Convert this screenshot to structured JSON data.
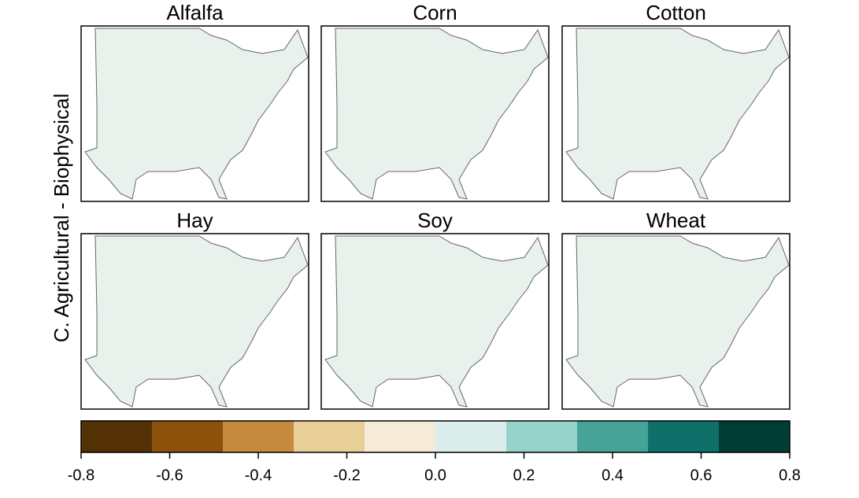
{
  "ylabel": "C. Agricultural - Biophysical",
  "panels": [
    {
      "title": "Alfalfa"
    },
    {
      "title": "Corn"
    },
    {
      "title": "Cotton"
    },
    {
      "title": "Hay"
    },
    {
      "title": "Soy"
    },
    {
      "title": "Wheat"
    }
  ],
  "colorbar": {
    "bins": [
      -0.8,
      -0.64,
      -0.48,
      -0.32,
      -0.16,
      0,
      0.16,
      0.32,
      0.48,
      0.64,
      0.8
    ],
    "colors": [
      "#543005",
      "#8c510a",
      "#c58a3e",
      "#e8cf98",
      "#f6ebd8",
      "#dbeeec",
      "#96d4c9",
      "#45a397",
      "#0e7068",
      "#003d33"
    ],
    "ticks": [
      -0.8,
      -0.6,
      -0.4,
      -0.2,
      {
        "value": 0,
        "label": "0.0"
      },
      0.2,
      0.4,
      0.6,
      0.8
    ]
  }
}
